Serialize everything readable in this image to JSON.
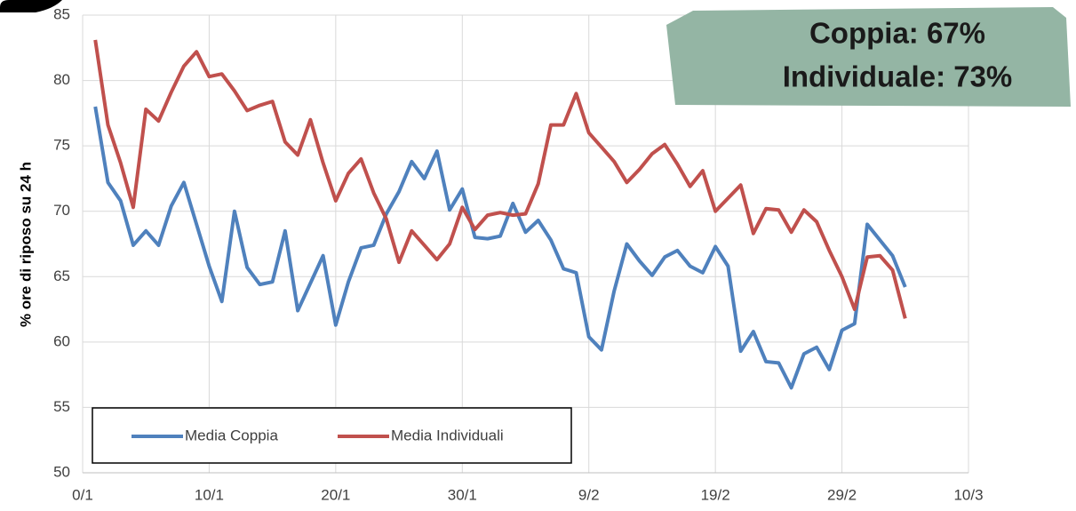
{
  "chart_data": {
    "type": "line",
    "y_label": "% ore di riposo su 24 h",
    "annotations": [
      "Coppia: 67%",
      "Individuale: 73%"
    ],
    "x": [
      1,
      2,
      3,
      4,
      5,
      6,
      7,
      8,
      9,
      10,
      11,
      12,
      13,
      14,
      15,
      16,
      17,
      18,
      19,
      20,
      21,
      22,
      23,
      24,
      25,
      26,
      27,
      28,
      29,
      30,
      31,
      32,
      33,
      34,
      35,
      36,
      37,
      38,
      39,
      40,
      41,
      42,
      43,
      44,
      45,
      46,
      47,
      48,
      49,
      50,
      51,
      52,
      53,
      54,
      55,
      56,
      57,
      58,
      59,
      60,
      61,
      62,
      63,
      64,
      65
    ],
    "series": [
      {
        "name": "Media Coppia",
        "color": "#4f81bd",
        "values": [
          78,
          72.2,
          70.8,
          67.4,
          68.5,
          67.4,
          70.4,
          72.2,
          69,
          65.8,
          63.1,
          70,
          65.7,
          64.4,
          64.6,
          68.5,
          62.4,
          64.5,
          66.6,
          61.3,
          64.6,
          67.2,
          67.4,
          69.8,
          71.5,
          73.8,
          72.5,
          74.6,
          70.1,
          71.7,
          68,
          67.9,
          68.1,
          70.6,
          68.4,
          69.3,
          67.8,
          65.6,
          65.3,
          60.4,
          59.4,
          63.9,
          67.5,
          66.2,
          65.1,
          66.5,
          67,
          65.8,
          65.3,
          67.3,
          65.8,
          59.3,
          60.8,
          58.5,
          58.4,
          56.5,
          59.1,
          59.6,
          57.9,
          60.9,
          61.4,
          69,
          67.8,
          66.6,
          64.2
        ]
      },
      {
        "name": "Media Individuali",
        "color": "#c0504d",
        "values": [
          83.1,
          76.6,
          73.7,
          70.3,
          77.8,
          76.9,
          79.1,
          81.1,
          82.2,
          80.3,
          80.5,
          79.2,
          77.7,
          78.1,
          78.4,
          75.3,
          74.3,
          77,
          73.7,
          70.8,
          72.9,
          74,
          71.4,
          69.4,
          66.1,
          68.5,
          67.4,
          66.3,
          67.5,
          70.3,
          68.6,
          69.7,
          69.9,
          69.7,
          69.8,
          72.1,
          76.6,
          76.6,
          79,
          76,
          74.9,
          73.8,
          72.2,
          73.2,
          74.4,
          75.1,
          73.6,
          71.9,
          73.1,
          70,
          71,
          72,
          68.3,
          70.2,
          70.1,
          68.4,
          70.1,
          69.2,
          67,
          65,
          62.5,
          66.5,
          66.6,
          65.5,
          61.8
        ]
      }
    ],
    "xlim": [
      0,
      70
    ],
    "xticks": [
      {
        "value": 0,
        "label": "0/1"
      },
      {
        "value": 10,
        "label": "10/1"
      },
      {
        "value": 20,
        "label": "20/1"
      },
      {
        "value": 30,
        "label": "30/1"
      },
      {
        "value": 40,
        "label": "9/2"
      },
      {
        "value": 50,
        "label": "19/2"
      },
      {
        "value": 60,
        "label": "29/2"
      },
      {
        "value": 70,
        "label": "10/3"
      }
    ],
    "ylim": [
      50,
      85
    ],
    "yticks": [
      50,
      55,
      60,
      65,
      70,
      75,
      80,
      85
    ],
    "grid": true,
    "legend": "lower left"
  }
}
